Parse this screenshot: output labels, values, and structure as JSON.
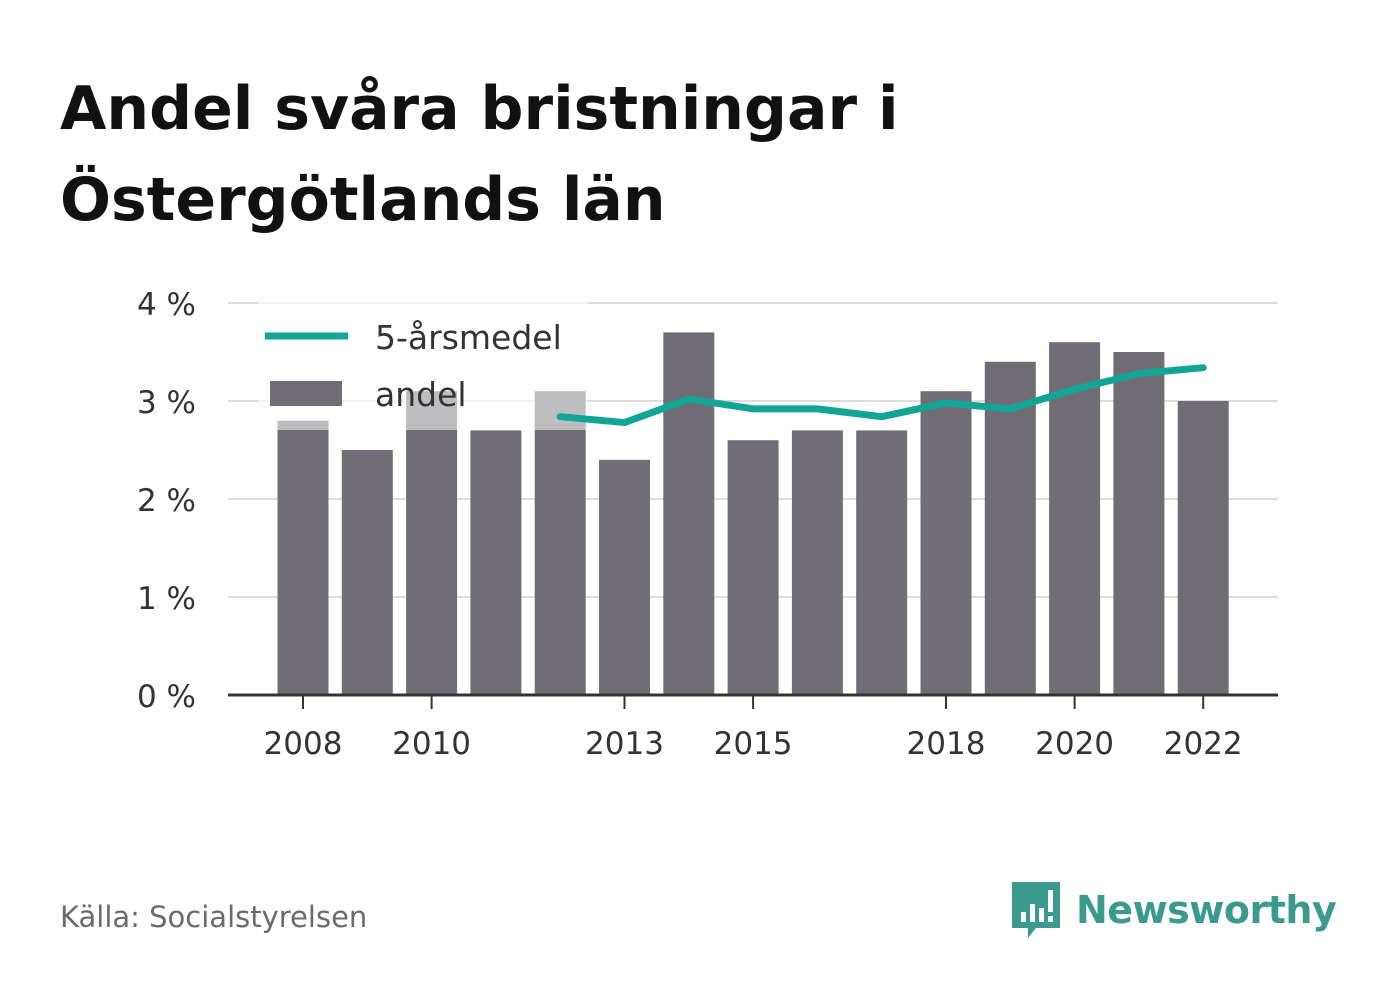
{
  "title_line1": "Andel svåra bristningar i",
  "title_line2": "Östergötlands län",
  "source": "Källa: Socialstyrelsen",
  "brand": "Newsworthy",
  "colors": {
    "bar": "#706e74",
    "line": "#12a596",
    "grid": "#dddddd",
    "axis": "#333333",
    "brand": "#3a9a8e"
  },
  "chart_data": {
    "type": "bar",
    "x": [
      2008,
      2009,
      2010,
      2011,
      2012,
      2013,
      2014,
      2015,
      2016,
      2017,
      2018,
      2019,
      2020,
      2021,
      2022
    ],
    "x_tick_labels": [
      "2008",
      "2010",
      "2013",
      "2015",
      "2018",
      "2020",
      "2022"
    ],
    "x_tick_values": [
      2008,
      2010,
      2013,
      2015,
      2018,
      2020,
      2022
    ],
    "y_ticks": [
      0,
      1,
      2,
      3,
      4
    ],
    "y_tick_labels": [
      "0 %",
      "1 %",
      "2 %",
      "3 %",
      "4 %"
    ],
    "ylim": [
      0,
      4
    ],
    "grid": true,
    "legend_position": "top-left",
    "series": [
      {
        "name": "andel",
        "type": "bar",
        "values": [
          2.8,
          2.5,
          3.1,
          2.7,
          3.1,
          2.4,
          3.7,
          2.6,
          2.7,
          2.7,
          3.1,
          3.4,
          3.6,
          3.5,
          3.0
        ]
      },
      {
        "name": "5-årsmedel",
        "type": "line",
        "values": [
          null,
          null,
          null,
          null,
          2.84,
          2.78,
          3.02,
          2.92,
          2.92,
          2.84,
          2.98,
          2.92,
          3.12,
          3.28,
          3.34
        ]
      }
    ]
  }
}
